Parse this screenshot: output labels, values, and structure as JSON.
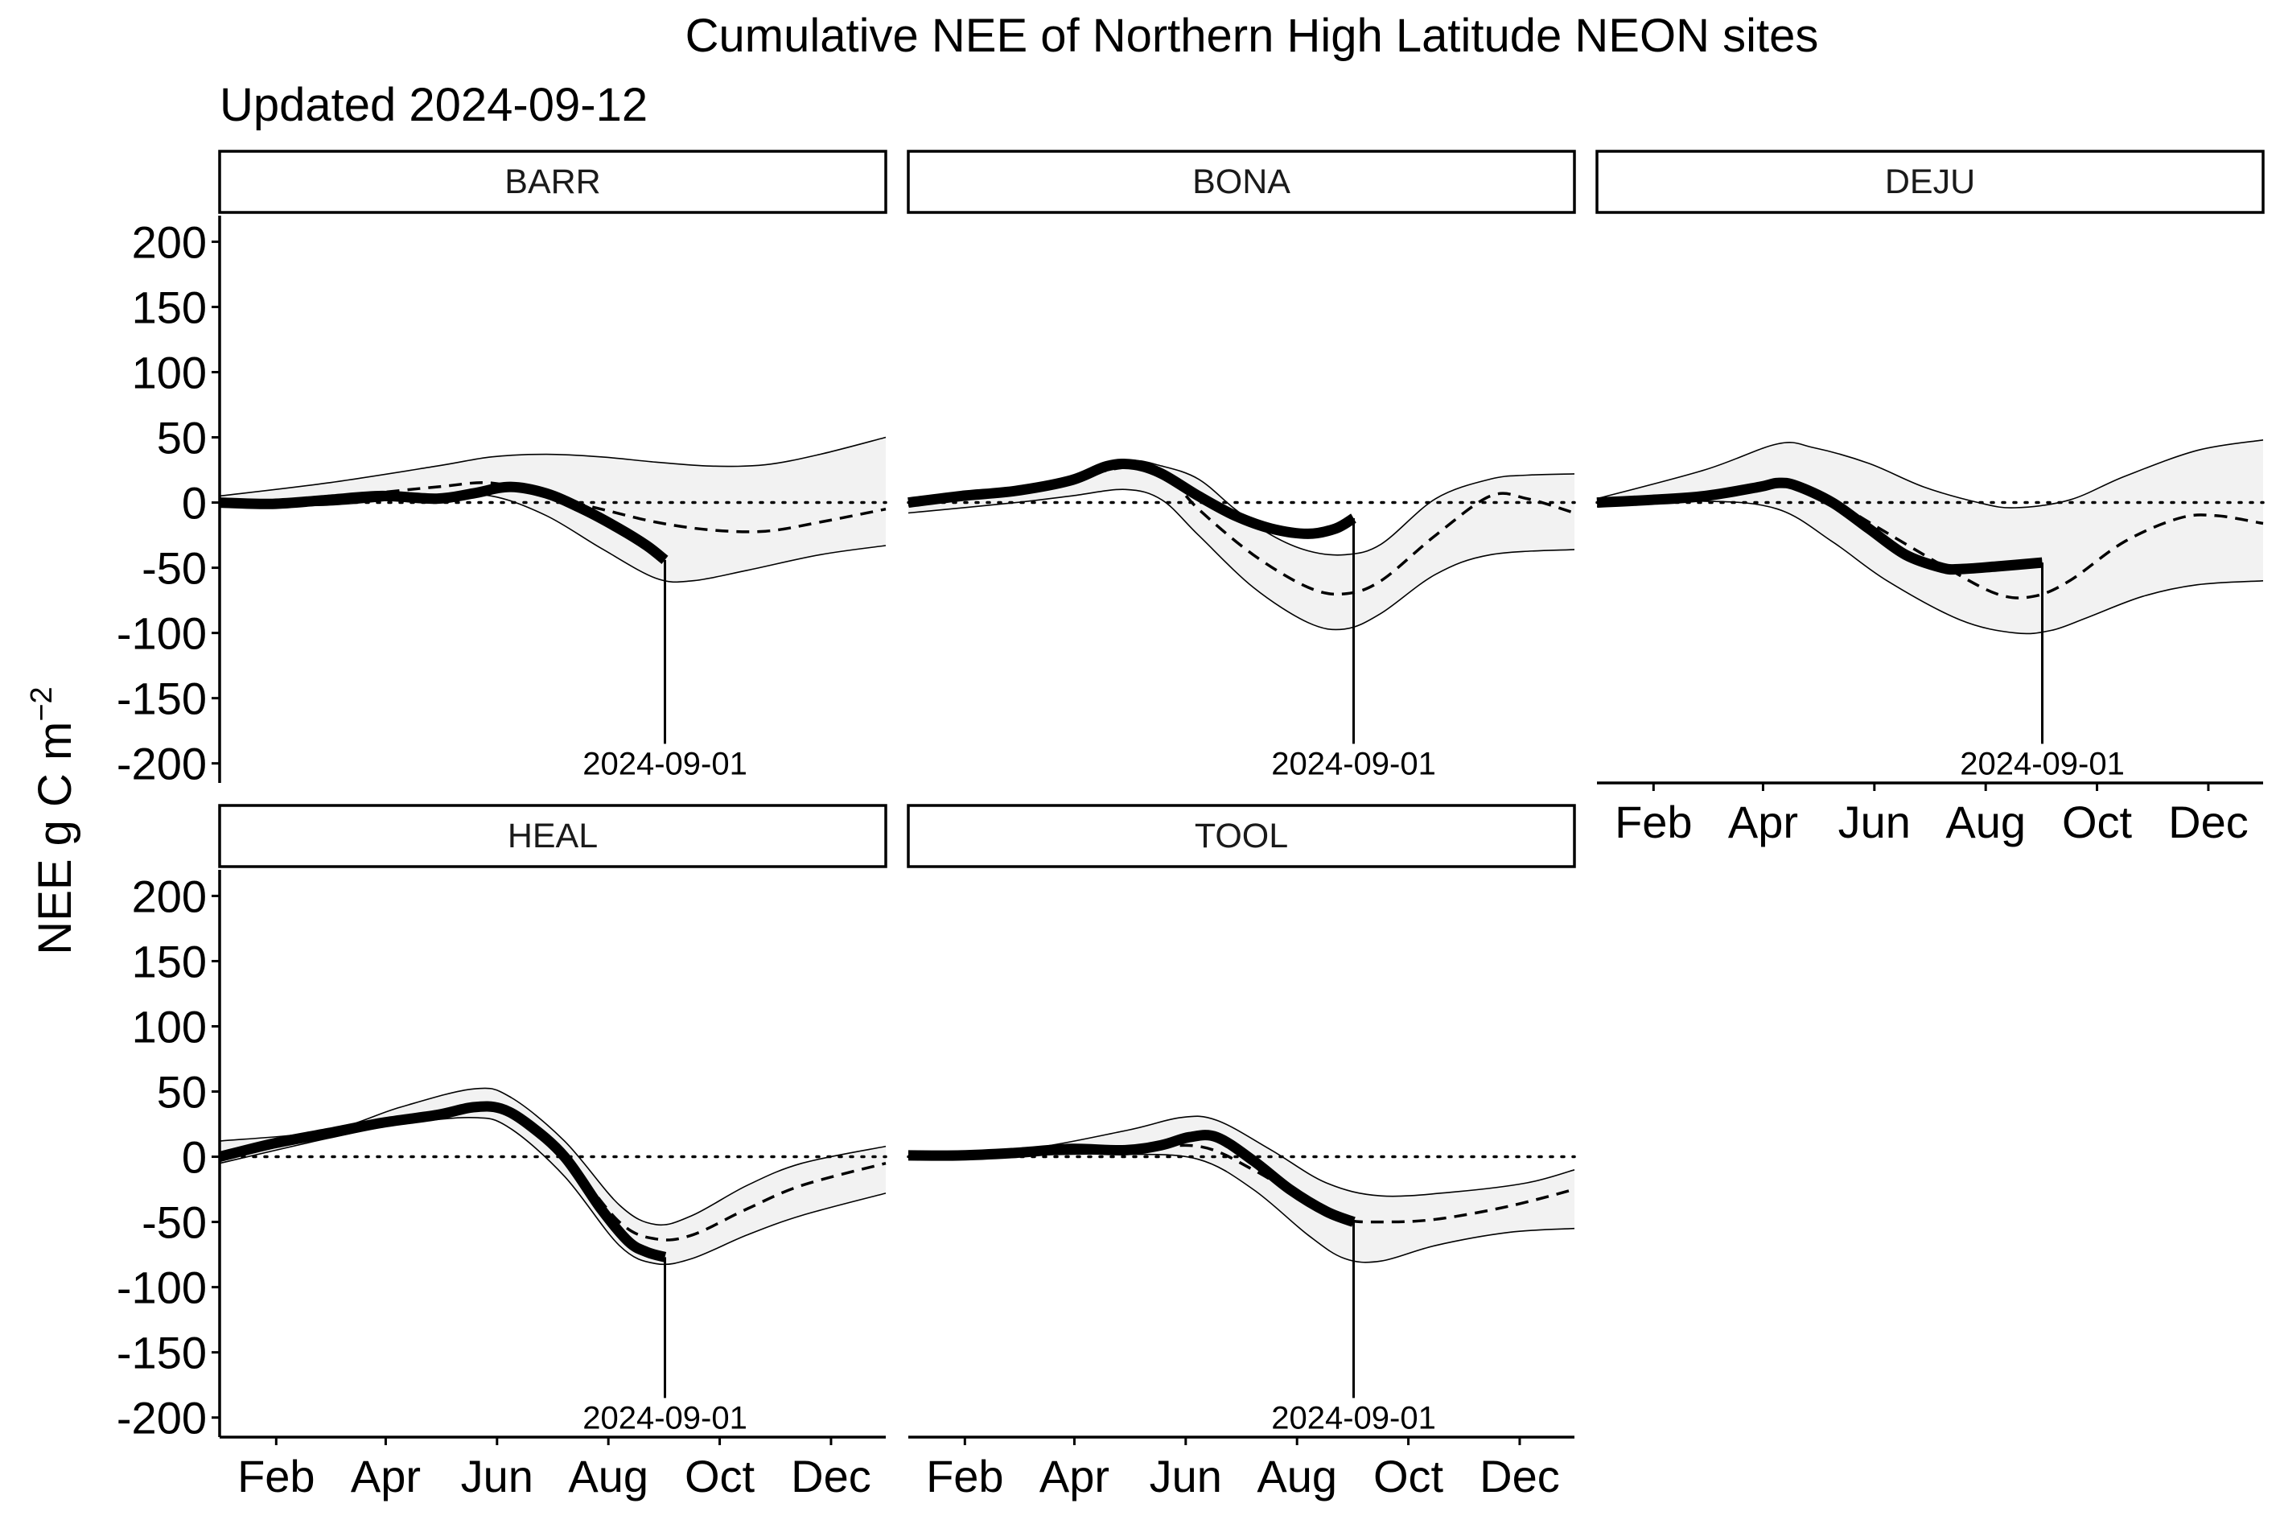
{
  "title": "Cumulative NEE of Northern High Latitude NEON sites",
  "subtitle": "Updated 2024-09-12",
  "chart_data": {
    "type": "line",
    "ylabel": "NEE g C m",
    "ylabel_sup": "−2",
    "ylim": [
      -215,
      220
    ],
    "yticks": [
      200,
      150,
      100,
      50,
      0,
      -50,
      -100,
      -150,
      -200
    ],
    "ytick_labels": [
      "200",
      "150",
      "100",
      "50",
      "0",
      "-50",
      "-100",
      "-150",
      "-200"
    ],
    "x_unit": "day of year",
    "xlim": [
      1,
      366
    ],
    "xticks": [
      32,
      92,
      153,
      214,
      275,
      336
    ],
    "xtick_labels": [
      "Feb",
      "Apr",
      "Jun",
      "Aug",
      "Oct",
      "Dec"
    ],
    "reference_line_y": 0,
    "cutoff_label": "2024-09-01",
    "cutoff_day": 245,
    "legend": "none",
    "grid": false,
    "panels": [
      {
        "site": "BARR",
        "observed": [
          [
            1,
            0
          ],
          [
            30,
            -1
          ],
          [
            60,
            2
          ],
          [
            90,
            5
          ],
          [
            120,
            3
          ],
          [
            140,
            7
          ],
          [
            160,
            12
          ],
          [
            180,
            7
          ],
          [
            200,
            -5
          ],
          [
            220,
            -20
          ],
          [
            235,
            -33
          ],
          [
            245,
            -44
          ]
        ],
        "mean": [
          [
            1,
            0
          ],
          [
            60,
            4
          ],
          [
            120,
            12
          ],
          [
            150,
            15
          ],
          [
            180,
            5
          ],
          [
            210,
            -5
          ],
          [
            240,
            -15
          ],
          [
            270,
            -21
          ],
          [
            300,
            -22
          ],
          [
            330,
            -15
          ],
          [
            366,
            -5
          ]
        ],
        "upper": [
          [
            1,
            5
          ],
          [
            60,
            15
          ],
          [
            120,
            28
          ],
          [
            150,
            35
          ],
          [
            180,
            37
          ],
          [
            210,
            35
          ],
          [
            240,
            31
          ],
          [
            270,
            28
          ],
          [
            300,
            29
          ],
          [
            330,
            37
          ],
          [
            366,
            50
          ]
        ],
        "lower": [
          [
            1,
            -2
          ],
          [
            60,
            -2
          ],
          [
            120,
            5
          ],
          [
            150,
            5
          ],
          [
            180,
            -10
          ],
          [
            210,
            -35
          ],
          [
            240,
            -58
          ],
          [
            260,
            -60
          ],
          [
            290,
            -52
          ],
          [
            330,
            -40
          ],
          [
            366,
            -33
          ]
        ]
      },
      {
        "site": "BONA",
        "observed": [
          [
            1,
            0
          ],
          [
            30,
            5
          ],
          [
            60,
            9
          ],
          [
            90,
            17
          ],
          [
            110,
            28
          ],
          [
            125,
            29
          ],
          [
            140,
            22
          ],
          [
            160,
            5
          ],
          [
            180,
            -10
          ],
          [
            200,
            -20
          ],
          [
            220,
            -24
          ],
          [
            235,
            -20
          ],
          [
            245,
            -12
          ]
        ],
        "mean": [
          [
            1,
            -2
          ],
          [
            60,
            8
          ],
          [
            90,
            18
          ],
          [
            120,
            27
          ],
          [
            140,
            24
          ],
          [
            160,
            -5
          ],
          [
            190,
            -40
          ],
          [
            220,
            -65
          ],
          [
            240,
            -70
          ],
          [
            260,
            -60
          ],
          [
            290,
            -25
          ],
          [
            320,
            5
          ],
          [
            340,
            3
          ],
          [
            366,
            -8
          ]
        ],
        "upper": [
          [
            1,
            2
          ],
          [
            60,
            11
          ],
          [
            90,
            20
          ],
          [
            120,
            32
          ],
          [
            140,
            28
          ],
          [
            160,
            18
          ],
          [
            180,
            -5
          ],
          [
            200,
            -25
          ],
          [
            220,
            -37
          ],
          [
            240,
            -40
          ],
          [
            260,
            -32
          ],
          [
            290,
            3
          ],
          [
            320,
            18
          ],
          [
            340,
            21
          ],
          [
            366,
            22
          ]
        ],
        "lower": [
          [
            1,
            -8
          ],
          [
            60,
            0
          ],
          [
            90,
            5
          ],
          [
            120,
            10
          ],
          [
            140,
            2
          ],
          [
            160,
            -25
          ],
          [
            190,
            -65
          ],
          [
            220,
            -92
          ],
          [
            240,
            -97
          ],
          [
            260,
            -85
          ],
          [
            290,
            -55
          ],
          [
            320,
            -40
          ],
          [
            366,
            -36
          ]
        ]
      },
      {
        "site": "DEJU",
        "observed": [
          [
            1,
            0
          ],
          [
            30,
            2
          ],
          [
            60,
            5
          ],
          [
            90,
            12
          ],
          [
            100,
            15
          ],
          [
            110,
            13
          ],
          [
            130,
            0
          ],
          [
            150,
            -20
          ],
          [
            170,
            -40
          ],
          [
            190,
            -50
          ],
          [
            200,
            -51
          ],
          [
            220,
            -49
          ],
          [
            245,
            -46
          ]
        ],
        "mean": [
          [
            1,
            0
          ],
          [
            60,
            5
          ],
          [
            100,
            14
          ],
          [
            120,
            10
          ],
          [
            150,
            -15
          ],
          [
            190,
            -48
          ],
          [
            220,
            -70
          ],
          [
            240,
            -72
          ],
          [
            260,
            -60
          ],
          [
            290,
            -30
          ],
          [
            320,
            -12
          ],
          [
            340,
            -10
          ],
          [
            366,
            -16
          ]
        ],
        "upper": [
          [
            1,
            3
          ],
          [
            60,
            25
          ],
          [
            100,
            45
          ],
          [
            120,
            42
          ],
          [
            150,
            30
          ],
          [
            180,
            12
          ],
          [
            210,
            0
          ],
          [
            230,
            -4
          ],
          [
            260,
            2
          ],
          [
            290,
            20
          ],
          [
            330,
            40
          ],
          [
            366,
            48
          ]
        ],
        "lower": [
          [
            1,
            -3
          ],
          [
            60,
            1
          ],
          [
            100,
            -5
          ],
          [
            130,
            -30
          ],
          [
            160,
            -60
          ],
          [
            200,
            -90
          ],
          [
            230,
            -100
          ],
          [
            250,
            -98
          ],
          [
            270,
            -88
          ],
          [
            300,
            -72
          ],
          [
            330,
            -63
          ],
          [
            366,
            -60
          ]
        ]
      },
      {
        "site": "HEAL",
        "observed": [
          [
            1,
            0
          ],
          [
            30,
            10
          ],
          [
            60,
            18
          ],
          [
            90,
            26
          ],
          [
            120,
            32
          ],
          [
            140,
            38
          ],
          [
            155,
            37
          ],
          [
            170,
            25
          ],
          [
            190,
            0
          ],
          [
            210,
            -40
          ],
          [
            225,
            -65
          ],
          [
            235,
            -73
          ],
          [
            245,
            -77
          ]
        ],
        "mean": [
          [
            1,
            2
          ],
          [
            60,
            17
          ],
          [
            100,
            30
          ],
          [
            140,
            37
          ],
          [
            160,
            33
          ],
          [
            190,
            0
          ],
          [
            220,
            -50
          ],
          [
            240,
            -63
          ],
          [
            260,
            -60
          ],
          [
            290,
            -40
          ],
          [
            320,
            -22
          ],
          [
            366,
            -5
          ]
        ],
        "upper": [
          [
            1,
            12
          ],
          [
            60,
            20
          ],
          [
            100,
            38
          ],
          [
            140,
            52
          ],
          [
            160,
            46
          ],
          [
            190,
            12
          ],
          [
            220,
            -37
          ],
          [
            240,
            -52
          ],
          [
            260,
            -45
          ],
          [
            290,
            -22
          ],
          [
            320,
            -5
          ],
          [
            366,
            8
          ]
        ],
        "lower": [
          [
            1,
            -5
          ],
          [
            60,
            14
          ],
          [
            100,
            25
          ],
          [
            140,
            30
          ],
          [
            160,
            22
          ],
          [
            190,
            -15
          ],
          [
            220,
            -68
          ],
          [
            240,
            -82
          ],
          [
            260,
            -78
          ],
          [
            290,
            -60
          ],
          [
            320,
            -45
          ],
          [
            366,
            -28
          ]
        ]
      },
      {
        "site": "TOOL",
        "observed": [
          [
            1,
            1
          ],
          [
            30,
            1
          ],
          [
            60,
            3
          ],
          [
            90,
            6
          ],
          [
            120,
            5
          ],
          [
            140,
            9
          ],
          [
            155,
            15
          ],
          [
            170,
            15
          ],
          [
            190,
            -3
          ],
          [
            210,
            -25
          ],
          [
            230,
            -42
          ],
          [
            245,
            -50
          ]
        ],
        "mean": [
          [
            1,
            0
          ],
          [
            60,
            3
          ],
          [
            120,
            5
          ],
          [
            160,
            8
          ],
          [
            190,
            -10
          ],
          [
            220,
            -35
          ],
          [
            240,
            -48
          ],
          [
            260,
            -50
          ],
          [
            290,
            -48
          ],
          [
            330,
            -38
          ],
          [
            366,
            -25
          ]
        ],
        "upper": [
          [
            1,
            3
          ],
          [
            60,
            5
          ],
          [
            120,
            20
          ],
          [
            150,
            30
          ],
          [
            170,
            28
          ],
          [
            200,
            5
          ],
          [
            230,
            -20
          ],
          [
            260,
            -30
          ],
          [
            300,
            -27
          ],
          [
            340,
            -20
          ],
          [
            366,
            -10
          ]
        ],
        "lower": [
          [
            1,
            -2
          ],
          [
            60,
            1
          ],
          [
            120,
            2
          ],
          [
            160,
            -2
          ],
          [
            190,
            -25
          ],
          [
            220,
            -60
          ],
          [
            240,
            -78
          ],
          [
            260,
            -80
          ],
          [
            290,
            -68
          ],
          [
            330,
            -58
          ],
          [
            366,
            -55
          ]
        ]
      }
    ]
  }
}
